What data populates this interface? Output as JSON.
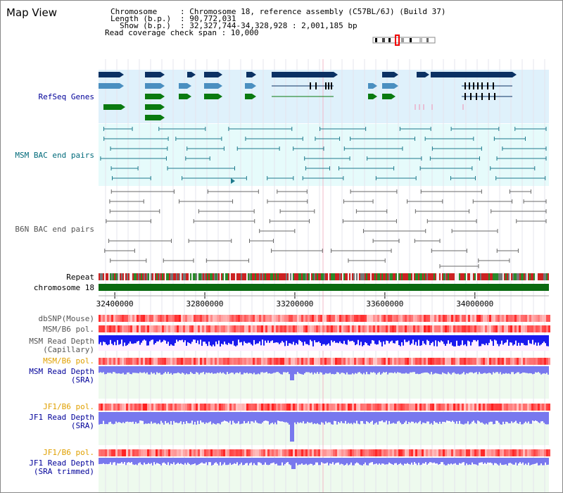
{
  "title": "Map View",
  "info": {
    "chromosome_key": "Chromosome",
    "chromosome_val": ": Chromosome 18, reference assembly (C57BL/6J) (Build 37)",
    "length_key": "Length (b.p.)",
    "length_val": ": 90,772,031",
    "show_key": "Show (b.p.)",
    "show_val": ": 32,327,744-34,328,928 : 2,001,185 bp",
    "coverage": "Read coverage check span : 10,000"
  },
  "labels": {
    "refseq": "RefSeq Genes",
    "msm_bac": "MSM BAC end pairs",
    "b6n_bac": "B6N BAC end pairs",
    "repeat": "Repeat",
    "chromosome": "chromosome 18",
    "dbsnp": "dbSNP(Mouse)",
    "msm_b6_pol_1": "MSM/B6 pol.",
    "msm_depth_cap_1": "MSM Read Depth",
    "msm_depth_cap_2": "(Capillary)",
    "msm_b6_pol_2": "MSM/B6 pol.",
    "msm_depth_sra_1": "MSM Read Depth",
    "msm_depth_sra_2": "(SRA)",
    "jf1_b6_pol_1": "JF1/B6 pol.",
    "jf1_depth_sra_1": "JF1 Read Depth",
    "jf1_depth_sra_2": "(SRA)",
    "jf1_b6_pol_2": "JF1/B6 pol.",
    "jf1_depth_trim_1": "JF1 Read Depth",
    "jf1_depth_trim_2": "(SRA trimmed)"
  },
  "axis": {
    "ticks": [
      "32400000",
      "32800000",
      "33200000",
      "33600000",
      "34000000"
    ],
    "tick_values": [
      32400000,
      32800000,
      33200000,
      33600000,
      34000000
    ],
    "range": [
      32327744,
      34328928
    ]
  },
  "colors": {
    "refseq_bg": "#dff1fb",
    "msm_bg": "#e6fbfb",
    "b6n_bg": "#ffffff",
    "navy": "#0b3163",
    "steel": "#4a8fc0",
    "green": "#0a7a10",
    "teal": "#1e7a8c",
    "gray": "#6a6a6a",
    "chrom": "#0a6a10",
    "depth_blue": "#1a1aee",
    "depth_light": "#7878ee",
    "pol_red": "#ee3a3a",
    "label_blue": "#000099",
    "label_teal": "#006a7a",
    "label_gray": "#555555",
    "label_orange": "#e0a000"
  }
}
